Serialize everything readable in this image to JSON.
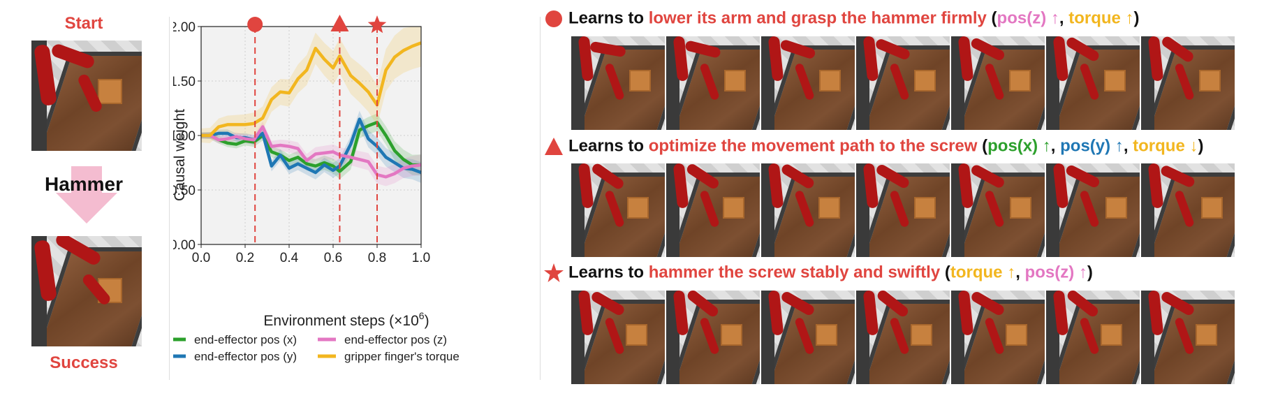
{
  "left_panel": {
    "start_label": "Start",
    "task_label": "Hammer",
    "success_label": "Success"
  },
  "chart_data": {
    "type": "line",
    "xlabel": "Environment steps (×10",
    "xlabel_exp": "6",
    "xlabel_close": ")",
    "ylabel": "Causal weight",
    "xlim": [
      0.0,
      1.0
    ],
    "ylim": [
      0.0,
      2.0
    ],
    "xticks": [
      "0.0",
      "0.2",
      "0.4",
      "0.6",
      "0.8",
      "1.0"
    ],
    "yticks": [
      "0.00",
      "0.50",
      "1.00",
      "1.50",
      "2.00"
    ],
    "grid": true,
    "legend_position": "bottom",
    "markers": [
      {
        "x": 0.245,
        "shape": "circle"
      },
      {
        "x": 0.63,
        "shape": "triangle"
      },
      {
        "x": 0.8,
        "shape": "star"
      }
    ],
    "x": [
      0.0,
      0.04,
      0.08,
      0.12,
      0.16,
      0.2,
      0.24,
      0.28,
      0.32,
      0.36,
      0.4,
      0.44,
      0.48,
      0.52,
      0.56,
      0.6,
      0.63,
      0.68,
      0.72,
      0.76,
      0.8,
      0.84,
      0.88,
      0.92,
      0.96,
      1.0
    ],
    "series": [
      {
        "name": "end-effector pos (x)",
        "color": "#2ca02c",
        "values": [
          1.0,
          1.0,
          0.96,
          0.93,
          0.92,
          0.95,
          0.94,
          1.0,
          0.85,
          0.82,
          0.77,
          0.8,
          0.74,
          0.72,
          0.75,
          0.72,
          0.67,
          0.76,
          1.05,
          1.09,
          1.12,
          1.0,
          0.86,
          0.78,
          0.73,
          0.73
        ]
      },
      {
        "name": "end-effector pos (y)",
        "color": "#1f77b4",
        "values": [
          1.0,
          1.0,
          1.02,
          1.02,
          0.98,
          0.98,
          0.96,
          1.02,
          0.72,
          0.82,
          0.7,
          0.74,
          0.7,
          0.66,
          0.73,
          0.68,
          0.72,
          0.92,
          1.15,
          0.97,
          0.9,
          0.8,
          0.75,
          0.7,
          0.69,
          0.66
        ]
      },
      {
        "name": "end-effector pos (z)",
        "color": "#e377c2",
        "values": [
          1.0,
          1.0,
          0.96,
          0.97,
          0.99,
          0.97,
          0.96,
          1.08,
          0.9,
          0.91,
          0.9,
          0.88,
          0.77,
          0.83,
          0.84,
          0.85,
          0.82,
          0.8,
          0.78,
          0.76,
          0.64,
          0.62,
          0.65,
          0.7,
          0.72,
          0.73
        ]
      },
      {
        "name": "gripper finger's torque",
        "color": "#f2b61f",
        "values": [
          1.0,
          1.0,
          1.08,
          1.1,
          1.1,
          1.1,
          1.11,
          1.16,
          1.33,
          1.4,
          1.39,
          1.52,
          1.6,
          1.8,
          1.7,
          1.62,
          1.73,
          1.55,
          1.48,
          1.4,
          1.28,
          1.6,
          1.72,
          1.78,
          1.82,
          1.85
        ]
      }
    ]
  },
  "rows": [
    {
      "marker": "circle",
      "prefix": "Learns to ",
      "goal": "lower its arm and grasp the hammer firmly",
      "open": " (",
      "v1": "pos(z) ↑",
      "sep1": ", ",
      "v2": "torque ↑",
      "close": ")"
    },
    {
      "marker": "triangle",
      "prefix": "Learns to ",
      "goal": "optimize the movement path to the screw",
      "open": " (",
      "v1": "pos(x) ↑",
      "sep1": ", ",
      "v2": "pos(y) ↑",
      "sep2": ", ",
      "v3": "torque ↓",
      "close": ")"
    },
    {
      "marker": "star",
      "prefix": "Learns to ",
      "goal": "hammer the screw stably and swiftly",
      "open": " (",
      "v1": "torque ↑",
      "sep1": ", ",
      "v2": "pos(z) ↑",
      "close": ")"
    }
  ],
  "colors": {
    "accent_red": "#e0453f",
    "arrow_pink": "#f4bcd0"
  }
}
